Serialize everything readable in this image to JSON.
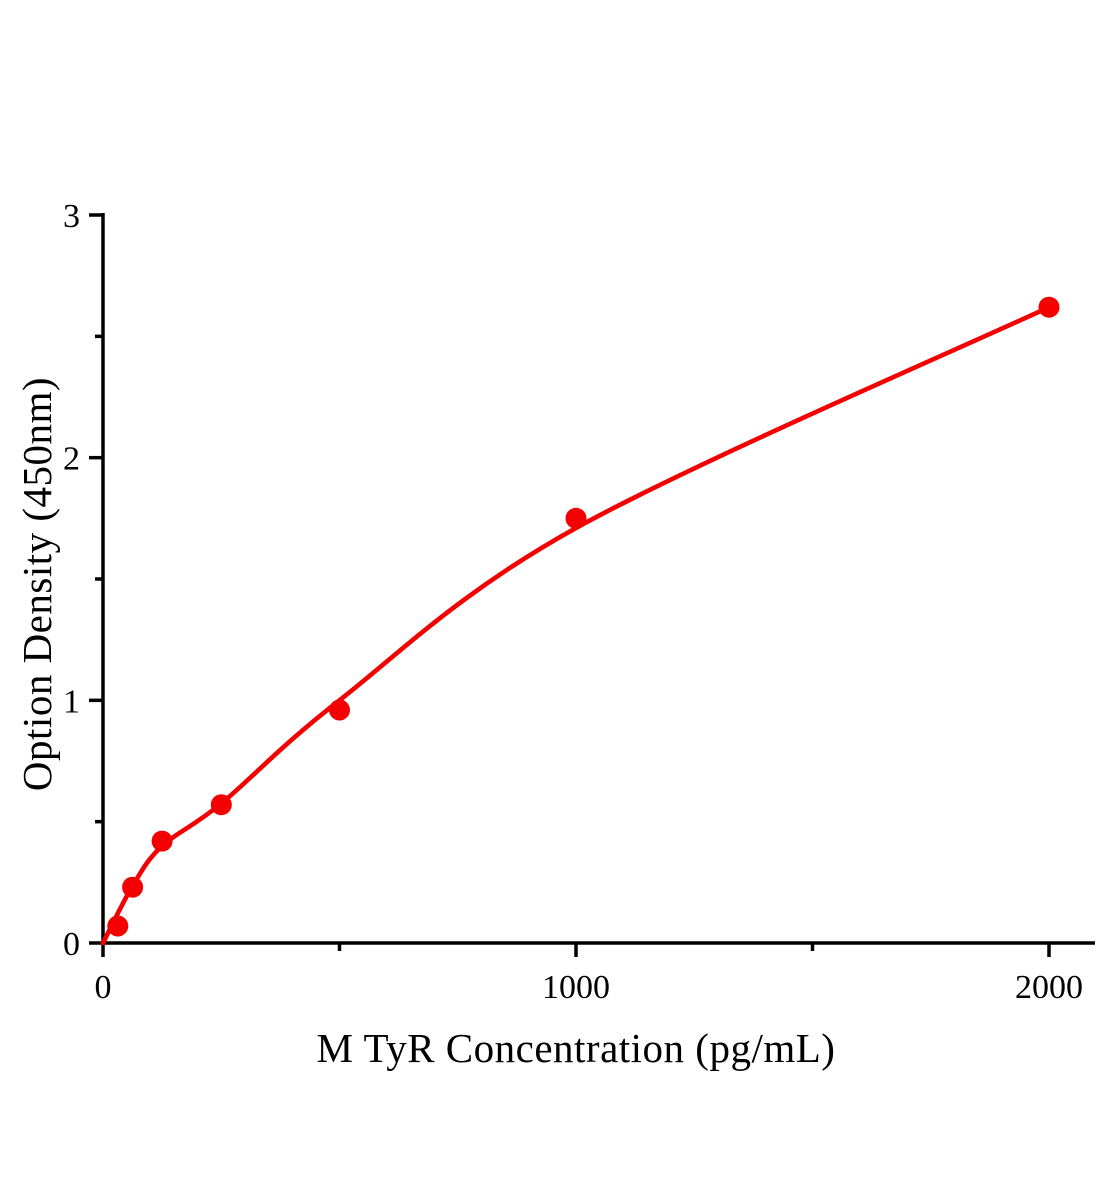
{
  "chart_data": {
    "type": "scatter",
    "title": "",
    "xlabel": "M TyR Concentration (pg/mL)",
    "ylabel": "Option Density (450nm)",
    "series": [
      {
        "name": "standard-curve-points",
        "x": [
          31.25,
          62.5,
          125,
          250,
          500,
          1000,
          2000
        ],
        "y": [
          0.07,
          0.23,
          0.42,
          0.57,
          0.96,
          1.75,
          2.62
        ]
      }
    ],
    "fit_curve": {
      "name": "fitted-curve",
      "x": [
        0,
        62.5,
        125,
        250,
        500,
        1000,
        2000
      ],
      "y": [
        0,
        0.235,
        0.4,
        0.575,
        1.0,
        1.71,
        2.62
      ]
    },
    "xlim": [
      0,
      2100
    ],
    "ylim": [
      0,
      3.01
    ],
    "x_major_ticks": [
      0,
      1000,
      2000
    ],
    "x_minor_ticks": [
      500,
      1500
    ],
    "y_major_ticks": [
      0,
      1,
      2,
      3
    ],
    "y_minor_ticks": [
      0.5,
      1.5,
      2.5
    ],
    "grid": false,
    "legend_position": "none",
    "point_color": "#f40000",
    "line_color": "#f40000",
    "axis_color": "#000000"
  }
}
